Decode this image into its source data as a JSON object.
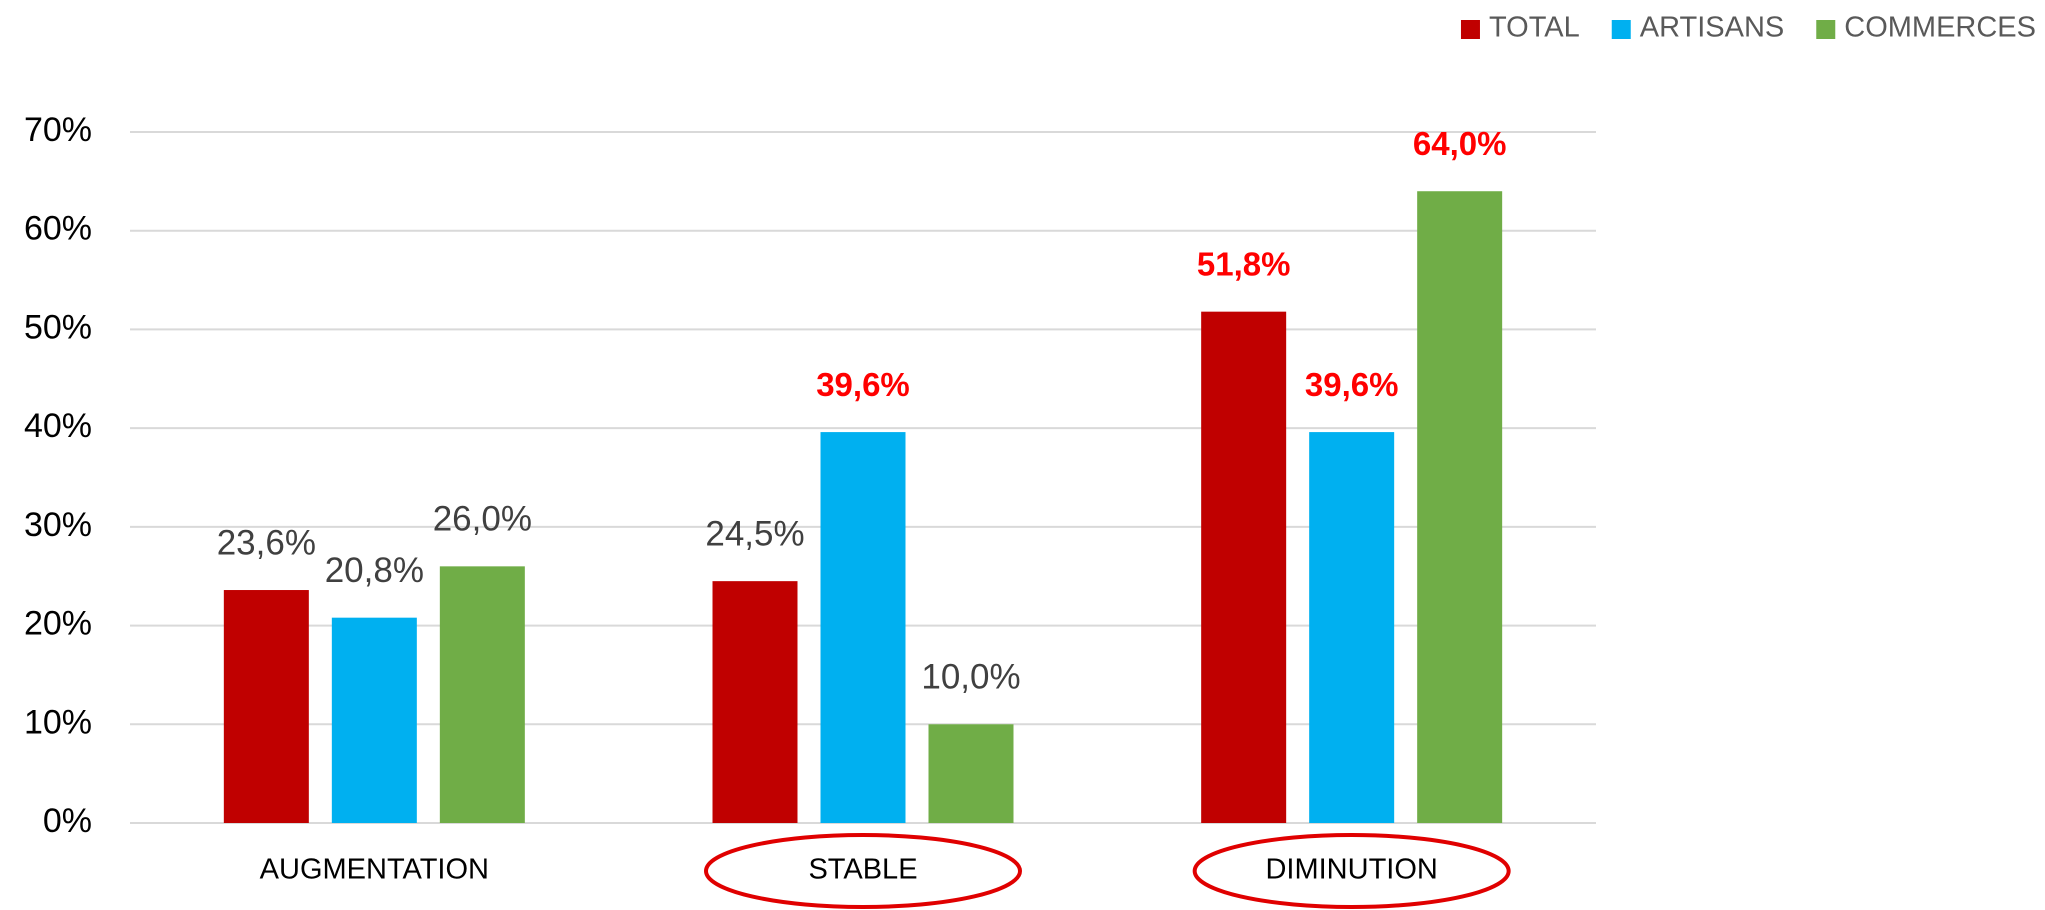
{
  "chart_data": {
    "type": "bar",
    "categories": [
      "AUGMENTATION",
      "STABLE",
      "DIMINUTION"
    ],
    "series": [
      {
        "name": "TOTAL",
        "color": "#c00000",
        "values": [
          23.6,
          24.5,
          51.8
        ],
        "value_labels": [
          "23,6%",
          "24,5%",
          "51,8%"
        ],
        "label_colors": [
          "#404040",
          "#404040",
          "#ff0000"
        ]
      },
      {
        "name": "ARTISANS",
        "color": "#00b0f0",
        "values": [
          20.8,
          39.6,
          39.6
        ],
        "value_labels": [
          "20,8%",
          "39,6%",
          "39,6%"
        ],
        "label_colors": [
          "#404040",
          "#ff0000",
          "#ff0000"
        ]
      },
      {
        "name": "COMMERCES",
        "color": "#70ad47",
        "values": [
          26.0,
          10.0,
          64.0
        ],
        "value_labels": [
          "26,0%",
          "10,0%",
          "64,0%"
        ],
        "label_colors": [
          "#404040",
          "#404040",
          "#ff0000"
        ]
      }
    ],
    "ylim": [
      0,
      70
    ],
    "yticks": [
      {
        "value": 0,
        "label": "0%"
      },
      {
        "value": 10,
        "label": "10%"
      },
      {
        "value": 20,
        "label": "20%"
      },
      {
        "value": 30,
        "label": "30%"
      },
      {
        "value": 40,
        "label": "40%"
      },
      {
        "value": 50,
        "label": "50%"
      },
      {
        "value": 60,
        "label": "60%"
      },
      {
        "value": 70,
        "label": "70%"
      }
    ],
    "grid": true,
    "legend": "top-right",
    "circled": [
      false,
      true,
      true
    ]
  }
}
